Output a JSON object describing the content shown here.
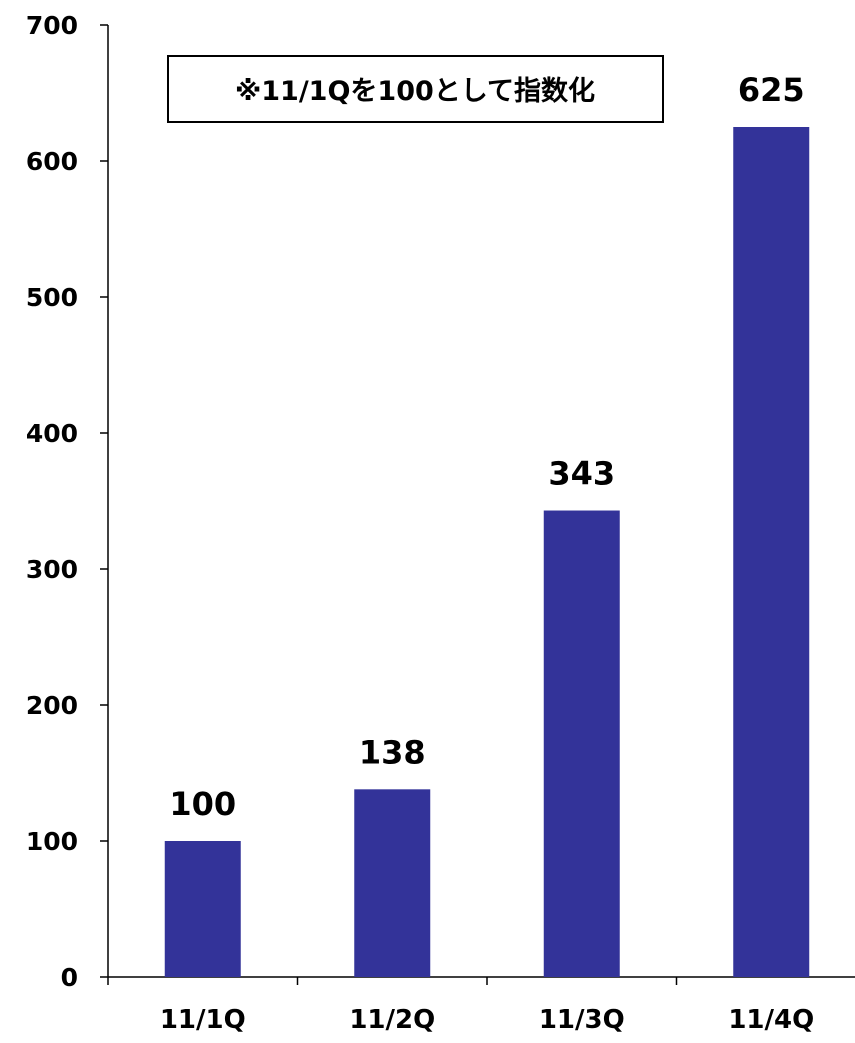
{
  "chart_data": {
    "type": "bar",
    "categories": [
      "11/1Q",
      "11/2Q",
      "11/3Q",
      "11/4Q"
    ],
    "values": [
      100,
      138,
      343,
      625
    ],
    "data_labels": [
      "100",
      "138",
      "343",
      "625"
    ],
    "ylim": [
      0,
      700
    ],
    "y_ticks": [
      0,
      100,
      200,
      300,
      400,
      500,
      600,
      700
    ],
    "annotation": "※11/1Qを100として指数化",
    "bar_color": "#333399",
    "grid": false,
    "legend": "none"
  }
}
